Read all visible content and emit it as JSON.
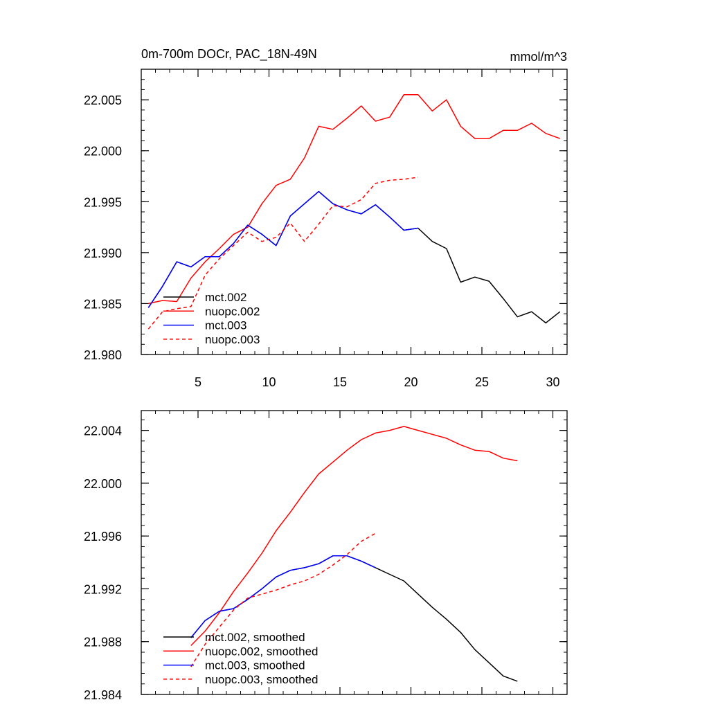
{
  "chart_data": [
    {
      "type": "line",
      "title": "0m-700m DOCr, PAC_18N-49N",
      "units": "mmol/m^3",
      "xlabel": "",
      "ylabel": "",
      "xlim": [
        1,
        31
      ],
      "ylim": [
        21.98,
        22.008
      ],
      "xticks": [
        5,
        10,
        15,
        20,
        25,
        30
      ],
      "xtick_labels": [
        "5",
        "10",
        "15",
        "20",
        "25",
        "30"
      ],
      "yticks": [
        21.98,
        21.985,
        21.99,
        21.995,
        22.0,
        22.005
      ],
      "ytick_labels": [
        "21.980",
        "21.985",
        "21.990",
        "21.995",
        "22.000",
        "22.005"
      ],
      "legend_position": "bottom-left",
      "series": [
        {
          "name": "mct.002",
          "color": "#000000",
          "dash": "solid",
          "x": [
            1.5,
            2.5,
            3.5,
            4.5,
            5.5,
            6.5,
            7.5,
            8.5,
            9.5,
            10.5,
            11.5,
            12.5,
            13.5,
            14.5,
            15.5,
            16.5,
            17.5,
            18.5,
            19.5,
            20.5,
            21.5,
            22.5,
            23.5,
            24.5,
            25.5,
            26.5,
            27.5,
            28.5,
            29.5,
            30.5
          ],
          "values": [
            21.9846,
            21.9867,
            21.9891,
            21.9886,
            21.9896,
            21.9896,
            21.9909,
            21.9927,
            21.9918,
            21.9907,
            21.9936,
            21.9948,
            21.996,
            21.9948,
            21.9942,
            21.9938,
            21.9947,
            21.9935,
            21.9922,
            21.9924,
            21.9911,
            21.9904,
            21.9871,
            21.9876,
            21.9872,
            21.9855,
            21.9837,
            21.9842,
            21.9831,
            21.9842
          ]
        },
        {
          "name": "nuopc.002",
          "color": "#ff0000",
          "dash": "solid",
          "x": [
            1.5,
            2.5,
            3.5,
            4.5,
            5.5,
            6.5,
            7.5,
            8.5,
            9.5,
            10.5,
            11.5,
            12.5,
            13.5,
            14.5,
            15.5,
            16.5,
            17.5,
            18.5,
            19.5,
            20.5,
            21.5,
            22.5,
            23.5,
            24.5,
            25.5,
            26.5,
            27.5,
            28.5,
            29.5,
            30.5
          ],
          "values": [
            21.985,
            21.9853,
            21.9852,
            21.9875,
            21.9891,
            21.9904,
            21.9918,
            21.9925,
            21.9948,
            21.9966,
            21.9972,
            21.9993,
            22.0024,
            22.0021,
            22.0032,
            22.0044,
            22.0029,
            22.0033,
            22.0055,
            22.0055,
            22.0039,
            22.005,
            22.0024,
            22.0012,
            22.0012,
            22.002,
            22.002,
            22.0027,
            22.0017,
            22.0012
          ]
        },
        {
          "name": "mct.003",
          "color": "#0000ff",
          "dash": "solid",
          "x": [
            1.5,
            2.5,
            3.5,
            4.5,
            5.5,
            6.5,
            7.5,
            8.5,
            9.5,
            10.5,
            11.5,
            12.5,
            13.5,
            14.5,
            15.5,
            16.5,
            17.5,
            18.5,
            19.5,
            20.5
          ],
          "values": [
            21.9846,
            21.9867,
            21.9891,
            21.9886,
            21.9896,
            21.9896,
            21.9909,
            21.9927,
            21.9918,
            21.9907,
            21.9936,
            21.9948,
            21.996,
            21.9948,
            21.9942,
            21.9938,
            21.9947,
            21.9935,
            21.9922,
            21.9924
          ]
        },
        {
          "name": "nuopc.003",
          "color": "#ff0000",
          "dash": "dashed",
          "x": [
            1.5,
            2.5,
            3.5,
            4.5,
            5.5,
            6.5,
            7.5,
            8.5,
            9.5,
            10.5,
            11.5,
            12.5,
            13.5,
            14.5,
            15.5,
            16.5,
            17.5,
            18.5,
            19.5,
            20.5
          ],
          "values": [
            21.9825,
            21.9842,
            21.9845,
            21.9847,
            21.9878,
            21.9894,
            21.9907,
            21.992,
            21.9911,
            21.9915,
            21.9929,
            21.9911,
            21.9928,
            21.9946,
            21.9945,
            21.9952,
            21.9968,
            21.9971,
            21.9972,
            21.9974
          ]
        }
      ]
    },
    {
      "type": "line",
      "title": "",
      "xlabel": "",
      "ylabel": "",
      "xlim": [
        1,
        31
      ],
      "ylim": [
        21.984,
        22.0055
      ],
      "xticks": [
        5,
        10,
        15,
        20,
        25,
        30
      ],
      "xtick_labels": [
        "",
        "",
        "",
        "",
        "",
        ""
      ],
      "yticks": [
        21.984,
        21.988,
        21.992,
        21.996,
        22.0,
        22.004
      ],
      "ytick_labels": [
        "21.984",
        "21.988",
        "21.992",
        "21.996",
        "22.000",
        "22.004"
      ],
      "legend_position": "bottom-left",
      "series": [
        {
          "name": "mct.002, smoothed",
          "color": "#000000",
          "dash": "solid",
          "x": [
            4.5,
            5.5,
            6.5,
            7.5,
            8.5,
            9.5,
            10.5,
            11.5,
            12.5,
            13.5,
            14.5,
            15.5,
            16.5,
            17.5,
            18.5,
            19.5,
            20.5,
            21.5,
            22.5,
            23.5,
            24.5,
            25.5,
            26.5,
            27.5
          ],
          "values": [
            21.9883,
            21.9896,
            21.9903,
            21.9905,
            21.9912,
            21.992,
            21.9929,
            21.9934,
            21.9936,
            21.9939,
            21.9945,
            21.9945,
            21.9941,
            21.9936,
            21.9931,
            21.9926,
            21.9916,
            21.9906,
            21.9897,
            21.9887,
            21.9874,
            21.9864,
            21.9854,
            21.985
          ]
        },
        {
          "name": "nuopc.002, smoothed",
          "color": "#ff0000",
          "dash": "solid",
          "x": [
            4.5,
            5.5,
            6.5,
            7.5,
            8.5,
            9.5,
            10.5,
            11.5,
            12.5,
            13.5,
            14.5,
            15.5,
            16.5,
            17.5,
            18.5,
            19.5,
            20.5,
            21.5,
            22.5,
            23.5,
            24.5,
            25.5,
            26.5,
            27.5
          ],
          "values": [
            21.9877,
            21.9888,
            21.9902,
            21.9918,
            21.9932,
            21.9947,
            21.9964,
            21.9978,
            21.9993,
            22.0007,
            22.0016,
            22.0025,
            22.0033,
            22.0038,
            22.004,
            22.0043,
            22.004,
            22.0037,
            22.0034,
            22.0029,
            22.0025,
            22.0024,
            22.0019,
            22.0017
          ]
        },
        {
          "name": "mct.003, smoothed",
          "color": "#0000ff",
          "dash": "solid",
          "x": [
            4.5,
            5.5,
            6.5,
            7.5,
            8.5,
            9.5,
            10.5,
            11.5,
            12.5,
            13.5,
            14.5,
            15.5,
            16.5,
            17.5
          ],
          "values": [
            21.9883,
            21.9896,
            21.9903,
            21.9905,
            21.9912,
            21.992,
            21.9929,
            21.9934,
            21.9936,
            21.9939,
            21.9945,
            21.9945,
            21.9941,
            21.9936
          ]
        },
        {
          "name": "nuopc.003, smoothed",
          "color": "#ff0000",
          "dash": "dashed",
          "x": [
            4.5,
            5.5,
            6.5,
            7.5,
            8.5,
            9.5,
            10.5,
            11.5,
            12.5,
            13.5,
            14.5,
            15.5,
            16.5,
            17.5
          ],
          "values": [
            21.9861,
            21.9878,
            21.9891,
            21.9904,
            21.9913,
            21.9916,
            21.9919,
            21.9923,
            21.9926,
            21.9931,
            21.9938,
            21.9946,
            21.9956,
            21.9962
          ]
        }
      ]
    }
  ]
}
